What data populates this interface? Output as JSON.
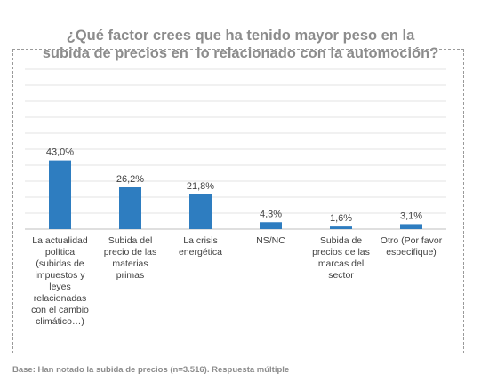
{
  "chart_data": {
    "type": "bar",
    "title": [
      "¿Qué factor crees que ha tenido mayor peso en la",
      "subida de precios en  lo relacionado con la automoción?"
    ],
    "categories": [
      [
        "La actualidad",
        "política",
        "(subidas de",
        "impuestos y",
        "leyes",
        "relacionadas",
        "con el cambio",
        "climático…)"
      ],
      [
        "Subida del",
        "precio de las",
        "materias",
        "primas"
      ],
      [
        "La crisis",
        "energética"
      ],
      [
        "NS/NC"
      ],
      [
        "Subida de",
        "precios de las",
        "marcas del",
        "sector"
      ],
      [
        "Otro (Por favor",
        "especifique)"
      ]
    ],
    "values": [
      43.0,
      26.2,
      21.8,
      4.3,
      1.6,
      3.1
    ],
    "value_labels": [
      "43,0%",
      "26,2%",
      "21,8%",
      "4,3%",
      "1,6%",
      "3,1%"
    ],
    "ylim": [
      0,
      100
    ],
    "grid": true,
    "bar_color": "#2e7dc0",
    "footnote": "Base: Han notado la subida de precios (n=3.516). Respuesta múltiple"
  }
}
